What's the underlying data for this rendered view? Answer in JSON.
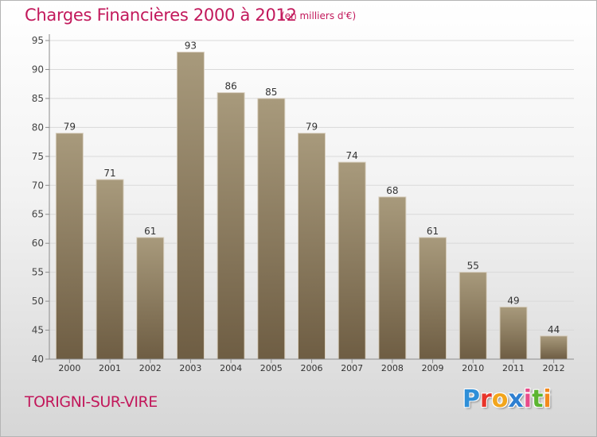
{
  "header": {
    "title": "Charges Financières 2000 à 2012",
    "subtitle": "(en milliers d'€)"
  },
  "footer": {
    "city": "TORIGNI-SUR-VIRE",
    "logo_letters": [
      "P",
      "r",
      "o",
      "x",
      "i",
      "t",
      "i"
    ]
  },
  "colors": {
    "title": "#c2185b",
    "bar_top": "#a89a7c",
    "bar_bottom": "#6e5d43",
    "grid": "#d9d9d9",
    "axis": "#8c8c8c"
  },
  "chart_data": {
    "type": "bar",
    "title": "Charges Financières 2000 à 2012",
    "subtitle": "(en milliers d'€)",
    "categories": [
      "2000",
      "2001",
      "2002",
      "2003",
      "2004",
      "2005",
      "2006",
      "2007",
      "2008",
      "2009",
      "2010",
      "2011",
      "2012"
    ],
    "values": [
      79,
      71,
      61,
      93,
      86,
      85,
      79,
      74,
      68,
      61,
      55,
      49,
      44
    ],
    "xlabel": "",
    "ylabel": "",
    "ylim": [
      40,
      95
    ],
    "yticks": [
      40,
      45,
      50,
      55,
      60,
      65,
      70,
      75,
      80,
      85,
      90,
      95
    ],
    "grid": true,
    "legend": "none"
  }
}
